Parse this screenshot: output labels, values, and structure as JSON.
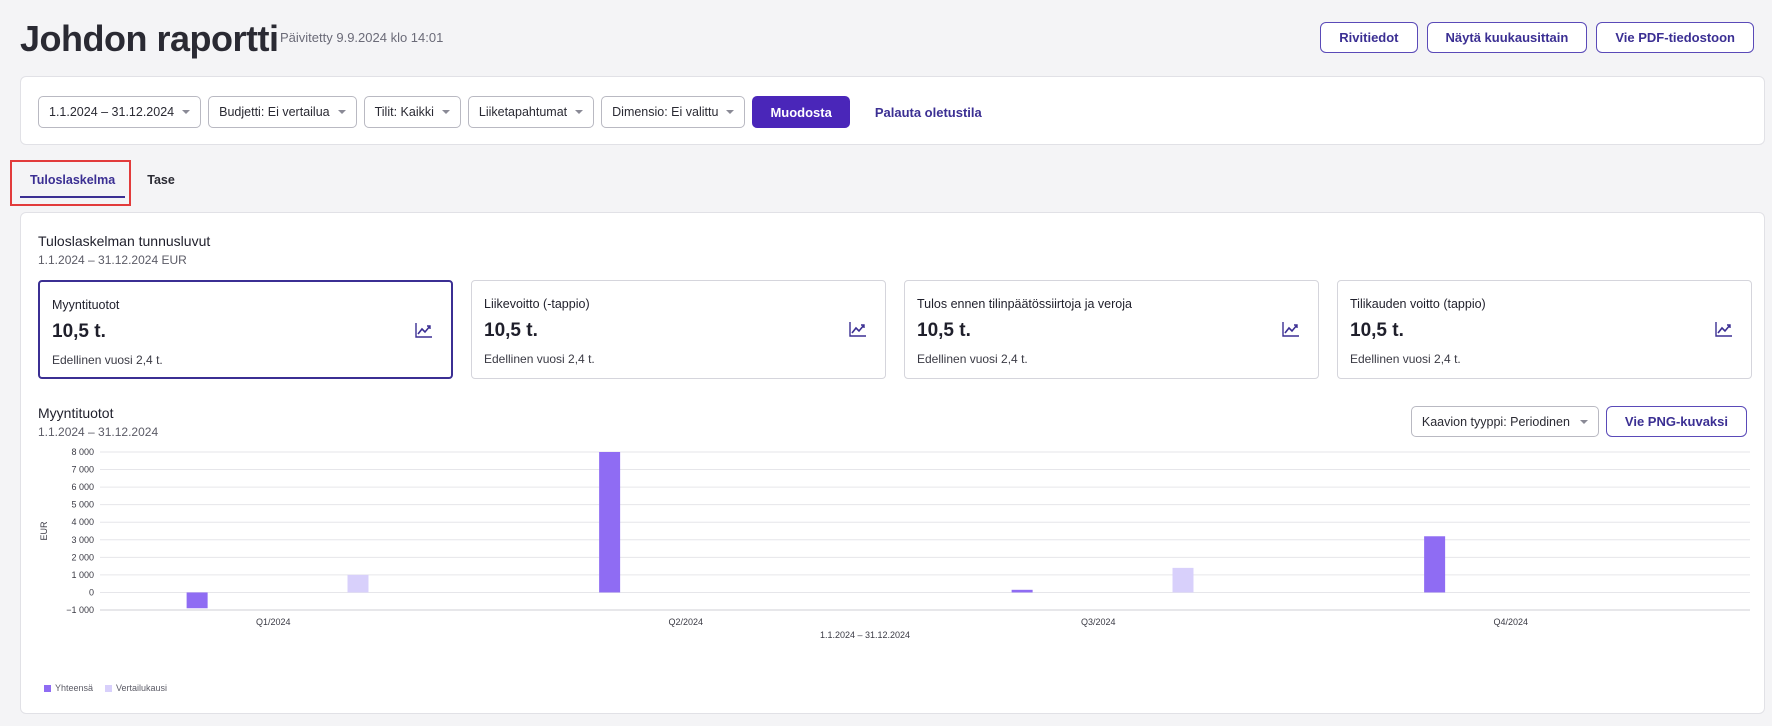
{
  "header": {
    "title": "Johdon raportti",
    "updated": "Päivitetty 9.9.2024 klo 14:01",
    "actions": [
      "Rivitiedot",
      "Näytä kuukausittain",
      "Vie PDF-tiedostoon"
    ]
  },
  "filters": {
    "period": "1.1.2024 – 31.12.2024",
    "budget": "Budjetti: Ei vertailua",
    "accounts": "Tilit: Kaikki",
    "transactions": "Liiketapahtumat",
    "dimension": "Dimensio: Ei valittu",
    "generate": "Muodosta",
    "reset": "Palauta oletustila"
  },
  "tabs": [
    {
      "label": "Tuloslaskelma",
      "active": true
    },
    {
      "label": "Tase",
      "active": false
    }
  ],
  "kpi_section": {
    "title": "Tuloslaskelman tunnusluvut",
    "subtitle": "1.1.2024 – 31.12.2024 EUR"
  },
  "kpis": [
    {
      "label": "Myyntituotot",
      "value": "10,5 t.",
      "previous": "Edellinen vuosi 2,4 t.",
      "selected": true,
      "icon": "trend-chart-icon"
    },
    {
      "label": "Liikevoitto (-tappio)",
      "value": "10,5 t.",
      "previous": "Edellinen vuosi 2,4 t.",
      "selected": false,
      "icon": "trend-chart-icon"
    },
    {
      "label": "Tulos ennen tilinpäätössiirtoja ja veroja",
      "value": "10,5 t.",
      "previous": "Edellinen vuosi 2,4 t.",
      "selected": false,
      "icon": "trend-chart-icon"
    },
    {
      "label": "Tilikauden voitto (tappio)",
      "value": "10,5 t.",
      "previous": "Edellinen vuosi 2,4 t.",
      "selected": false,
      "icon": "trend-chart-icon"
    }
  ],
  "chart_section": {
    "title": "Myyntituotot",
    "subtitle": "1.1.2024 – 31.12.2024",
    "chart_type": "Kaavion tyyppi: Periodinen",
    "export": "Vie PNG-kuvaksi"
  },
  "colors": {
    "accent": "#4a26b9",
    "series_total": "#8f6cf3",
    "series_compare": "#d8d0fb",
    "highlight": "#e23b3b"
  },
  "chart_data": {
    "type": "bar",
    "categories": [
      "Q1/2024",
      "Q2/2024",
      "Q3/2024",
      "Q4/2024"
    ],
    "series": [
      {
        "name": "Yhteensä",
        "values": [
          -900,
          8000,
          150,
          3200
        ]
      },
      {
        "name": "Vertailukausi",
        "values": [
          1000,
          0,
          1400,
          0
        ]
      }
    ],
    "xlabel": "1.1.2024 – 31.12.2024",
    "ylabel": "EUR",
    "ylim": [
      -1000,
      8000
    ],
    "yticks": [
      -1000,
      0,
      1000,
      2000,
      3000,
      4000,
      5000,
      6000,
      7000,
      8000
    ],
    "ytick_labels": [
      "−1 000",
      "0",
      "1 000",
      "2 000",
      "3 000",
      "4 000",
      "5 000",
      "6 000",
      "7 000",
      "8 000"
    ],
    "grid": true,
    "legend": "bottom-left"
  }
}
